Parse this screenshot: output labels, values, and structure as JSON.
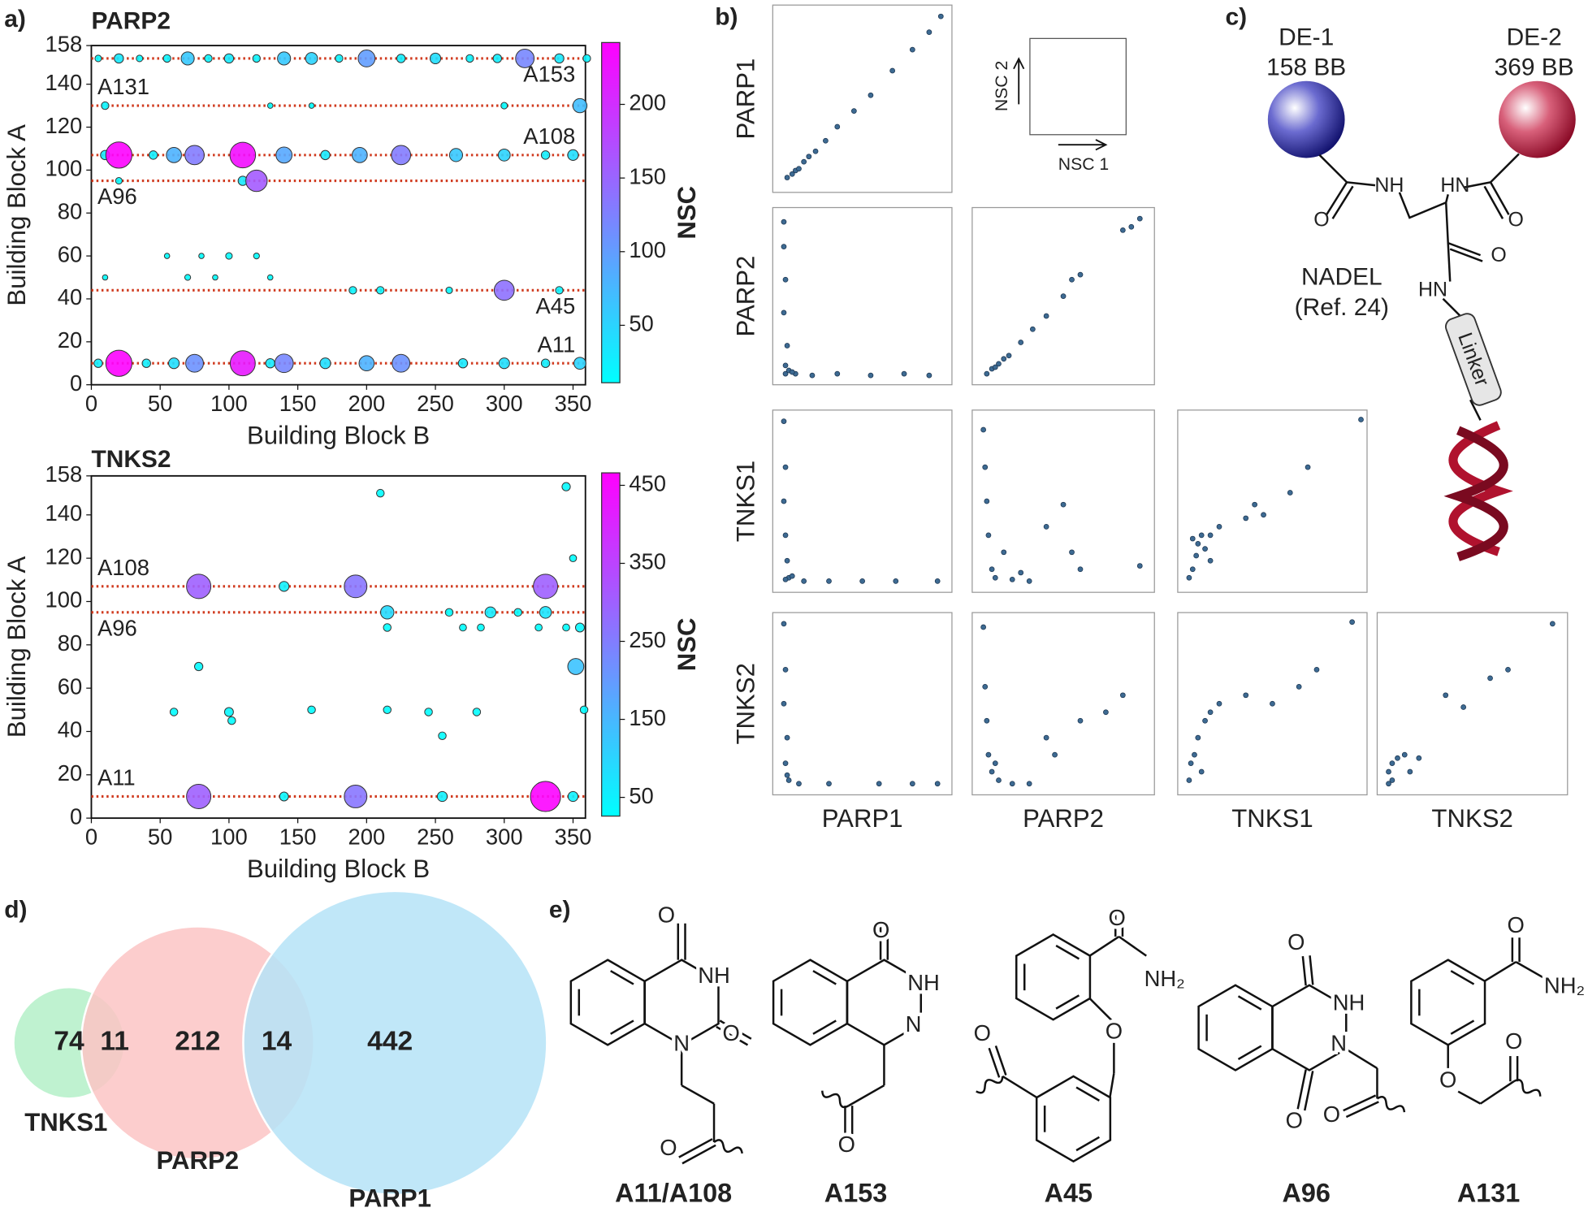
{
  "panel_labels": [
    "a)",
    "b)",
    "c)",
    "d)",
    "e)"
  ],
  "chart_data": [
    {
      "type": "bubble",
      "title": "PARP2",
      "x_label": "Building Block B",
      "y_label": "Building Block A",
      "colorbar_label": "NSC",
      "xlim": [
        0,
        359
      ],
      "ylim": [
        0,
        158
      ],
      "xticks": [
        0,
        50,
        100,
        150,
        200,
        250,
        300,
        350
      ],
      "yticks": [
        0,
        20,
        40,
        60,
        80,
        100,
        120,
        140,
        158
      ],
      "clim": [
        11,
        242
      ],
      "cticks": [
        50,
        100,
        150,
        200
      ],
      "colormap": [
        "#00ffff",
        "#ff00ff"
      ],
      "line_color": "#d03a1e",
      "lines": [
        {
          "label": "A153",
          "y": 152
        },
        {
          "label": "A131",
          "y": 130
        },
        {
          "label": "A108",
          "y": 107
        },
        {
          "label": "A96",
          "y": 95
        },
        {
          "label": "A45",
          "y": 44
        },
        {
          "label": "A11",
          "y": 10
        }
      ],
      "points": [
        [
          5,
          152,
          15
        ],
        [
          20,
          152,
          30
        ],
        [
          35,
          152,
          15
        ],
        [
          55,
          152,
          20
        ],
        [
          70,
          152,
          60
        ],
        [
          85,
          152,
          20
        ],
        [
          100,
          152,
          30
        ],
        [
          120,
          152,
          20
        ],
        [
          140,
          152,
          60
        ],
        [
          160,
          152,
          50
        ],
        [
          180,
          152,
          20
        ],
        [
          200,
          152,
          100
        ],
        [
          225,
          152,
          25
        ],
        [
          250,
          152,
          40
        ],
        [
          275,
          152,
          20
        ],
        [
          295,
          152,
          25
        ],
        [
          315,
          152,
          120
        ],
        [
          340,
          152,
          30
        ],
        [
          360,
          152,
          20
        ],
        [
          10,
          130,
          20
        ],
        [
          130,
          130,
          10
        ],
        [
          160,
          130,
          10
        ],
        [
          300,
          130,
          15
        ],
        [
          355,
          130,
          70
        ],
        [
          10,
          107,
          30
        ],
        [
          20,
          107,
          240
        ],
        [
          45,
          107,
          25
        ],
        [
          60,
          107,
          80
        ],
        [
          75,
          107,
          130
        ],
        [
          110,
          107,
          230
        ],
        [
          140,
          107,
          90
        ],
        [
          170,
          107,
          30
        ],
        [
          195,
          107,
          80
        ],
        [
          225,
          107,
          130
        ],
        [
          265,
          107,
          60
        ],
        [
          300,
          107,
          50
        ],
        [
          330,
          107,
          25
        ],
        [
          350,
          107,
          40
        ],
        [
          20,
          95,
          15
        ],
        [
          110,
          95,
          30
        ],
        [
          120,
          95,
          160
        ],
        [
          55,
          60,
          10
        ],
        [
          80,
          60,
          10
        ],
        [
          100,
          60,
          15
        ],
        [
          120,
          60,
          12
        ],
        [
          10,
          50,
          10
        ],
        [
          70,
          50,
          12
        ],
        [
          90,
          50,
          10
        ],
        [
          130,
          50,
          10
        ],
        [
          190,
          44,
          20
        ],
        [
          210,
          44,
          20
        ],
        [
          260,
          44,
          15
        ],
        [
          300,
          44,
          140
        ],
        [
          340,
          44,
          20
        ],
        [
          5,
          10,
          25
        ],
        [
          20,
          10,
          240
        ],
        [
          40,
          10,
          25
        ],
        [
          60,
          10,
          40
        ],
        [
          75,
          10,
          110
        ],
        [
          110,
          10,
          220
        ],
        [
          130,
          10,
          30
        ],
        [
          140,
          10,
          120
        ],
        [
          170,
          10,
          40
        ],
        [
          200,
          10,
          80
        ],
        [
          225,
          10,
          110
        ],
        [
          270,
          10,
          30
        ],
        [
          300,
          10,
          40
        ],
        [
          330,
          10,
          25
        ],
        [
          355,
          10,
          50
        ]
      ]
    },
    {
      "type": "bubble",
      "title": "TNKS2",
      "x_label": "Building Block B",
      "y_label": "Building Block A",
      "colorbar_label": "NSC",
      "xlim": [
        0,
        359
      ],
      "ylim": [
        0,
        158
      ],
      "xticks": [
        0,
        50,
        100,
        150,
        200,
        250,
        300,
        350
      ],
      "yticks": [
        0,
        20,
        40,
        60,
        80,
        100,
        120,
        140,
        158
      ],
      "clim": [
        26,
        466
      ],
      "cticks": [
        50,
        150,
        250,
        350,
        450
      ],
      "colormap": [
        "#00ffff",
        "#ff00ff"
      ],
      "line_color": "#d03a1e",
      "lines": [
        {
          "label": "A108",
          "y": 107
        },
        {
          "label": "A96",
          "y": 95
        },
        {
          "label": "A11",
          "y": 10
        }
      ],
      "points": [
        [
          78,
          107,
          300
        ],
        [
          140,
          107,
          50
        ],
        [
          192,
          107,
          260
        ],
        [
          330,
          107,
          300
        ],
        [
          78,
          10,
          300
        ],
        [
          140,
          10,
          40
        ],
        [
          192,
          10,
          260
        ],
        [
          255,
          10,
          50
        ],
        [
          330,
          10,
          460
        ],
        [
          350,
          10,
          50
        ],
        [
          215,
          95,
          90
        ],
        [
          260,
          95,
          30
        ],
        [
          290,
          95,
          60
        ],
        [
          310,
          95,
          30
        ],
        [
          330,
          95,
          70
        ],
        [
          215,
          88,
          30
        ],
        [
          270,
          88,
          25
        ],
        [
          283,
          88,
          25
        ],
        [
          325,
          88,
          25
        ],
        [
          345,
          88,
          25
        ],
        [
          355,
          88,
          40
        ],
        [
          78,
          70,
          35
        ],
        [
          352,
          70,
          130
        ],
        [
          210,
          150,
          30
        ],
        [
          345,
          153,
          35
        ],
        [
          350,
          120,
          25
        ],
        [
          60,
          49,
          30
        ],
        [
          100,
          49,
          40
        ],
        [
          102,
          45,
          30
        ],
        [
          160,
          50,
          30
        ],
        [
          215,
          50,
          30
        ],
        [
          245,
          49,
          30
        ],
        [
          280,
          49,
          30
        ],
        [
          255,
          38,
          30
        ],
        [
          358,
          50,
          30
        ]
      ]
    },
    {
      "type": "scatter_matrix",
      "names": [
        "PARP1",
        "PARP2",
        "TNKS1",
        "TNKS2"
      ],
      "xlim": [
        0,
        100
      ],
      "ylim": [
        0,
        100
      ],
      "color": "#3d6a92",
      "legend": {
        "x_label": "NSC 1",
        "y_label": "NSC 2"
      },
      "cells": [
        [
          [
            [
              5,
              5
            ],
            [
              8,
              7
            ],
            [
              10,
              9
            ],
            [
              12,
              10
            ],
            [
              15,
              14
            ],
            [
              18,
              17
            ],
            [
              22,
              20
            ],
            [
              28,
              26
            ],
            [
              35,
              34
            ],
            [
              45,
              43
            ],
            [
              55,
              52
            ],
            [
              68,
              66
            ],
            [
              80,
              78
            ],
            [
              90,
              88
            ],
            [
              97,
              97
            ]
          ]
        ],
        [
          [
            [
              3,
              95
            ],
            [
              3,
              80
            ],
            [
              4,
              60
            ],
            [
              3,
              40
            ],
            [
              5,
              20
            ],
            [
              4,
              8
            ],
            [
              10,
              3
            ],
            [
              20,
              2
            ],
            [
              35,
              3
            ],
            [
              55,
              2
            ],
            [
              75,
              3
            ],
            [
              90,
              2
            ],
            [
              4,
              3
            ],
            [
              6,
              5
            ],
            [
              8,
              4
            ]
          ],
          [
            [
              5,
              3
            ],
            [
              8,
              6
            ],
            [
              12,
              9
            ],
            [
              18,
              14
            ],
            [
              25,
              22
            ],
            [
              32,
              30
            ],
            [
              40,
              38
            ],
            [
              50,
              50
            ],
            [
              55,
              60
            ],
            [
              60,
              63
            ],
            [
              85,
              90
            ],
            [
              90,
              92
            ],
            [
              95,
              97
            ],
            [
              10,
              7
            ],
            [
              15,
              12
            ]
          ]
        ],
        [
          [
            [
              3,
              97
            ],
            [
              4,
              70
            ],
            [
              3,
              50
            ],
            [
              4,
              30
            ],
            [
              5,
              15
            ],
            [
              6,
              5
            ],
            [
              15,
              3
            ],
            [
              30,
              3
            ],
            [
              50,
              3
            ],
            [
              70,
              3
            ],
            [
              95,
              3
            ],
            [
              4,
              4
            ],
            [
              8,
              6
            ]
          ],
          [
            [
              3,
              92
            ],
            [
              4,
              70
            ],
            [
              5,
              50
            ],
            [
              6,
              30
            ],
            [
              8,
              10
            ],
            [
              10,
              5
            ],
            [
              20,
              4
            ],
            [
              30,
              3
            ],
            [
              40,
              35
            ],
            [
              50,
              48
            ],
            [
              55,
              20
            ],
            [
              60,
              10
            ],
            [
              95,
              12
            ],
            [
              15,
              20
            ],
            [
              25,
              8
            ]
          ],
          [
            [
              3,
              5
            ],
            [
              5,
              10
            ],
            [
              7,
              18
            ],
            [
              8,
              25
            ],
            [
              10,
              30
            ],
            [
              12,
              22
            ],
            [
              15,
              15
            ],
            [
              20,
              35
            ],
            [
              35,
              40
            ],
            [
              40,
              48
            ],
            [
              45,
              42
            ],
            [
              60,
              55
            ],
            [
              70,
              70
            ],
            [
              100,
              98
            ],
            [
              15,
              30
            ],
            [
              5,
              28
            ]
          ]
        ],
        [
          [
            [
              3,
              97
            ],
            [
              4,
              70
            ],
            [
              3,
              50
            ],
            [
              5,
              30
            ],
            [
              4,
              15
            ],
            [
              6,
              5
            ],
            [
              12,
              3
            ],
            [
              30,
              3
            ],
            [
              60,
              3
            ],
            [
              80,
              3
            ],
            [
              95,
              3
            ],
            [
              5,
              8
            ]
          ],
          [
            [
              3,
              95
            ],
            [
              4,
              60
            ],
            [
              5,
              40
            ],
            [
              6,
              20
            ],
            [
              8,
              10
            ],
            [
              12,
              5
            ],
            [
              20,
              3
            ],
            [
              30,
              3
            ],
            [
              40,
              30
            ],
            [
              45,
              20
            ],
            [
              60,
              40
            ],
            [
              75,
              45
            ],
            [
              85,
              55
            ],
            [
              10,
              15
            ]
          ],
          [
            [
              3,
              5
            ],
            [
              4,
              15
            ],
            [
              6,
              20
            ],
            [
              8,
              30
            ],
            [
              12,
              40
            ],
            [
              15,
              45
            ],
            [
              20,
              50
            ],
            [
              35,
              55
            ],
            [
              50,
              50
            ],
            [
              65,
              60
            ],
            [
              75,
              70
            ],
            [
              95,
              98
            ],
            [
              10,
              10
            ]
          ],
          [
            [
              3,
              3
            ],
            [
              5,
              5
            ],
            [
              3,
              10
            ],
            [
              5,
              15
            ],
            [
              8,
              18
            ],
            [
              12,
              20
            ],
            [
              15,
              10
            ],
            [
              20,
              18
            ],
            [
              35,
              55
            ],
            [
              45,
              48
            ],
            [
              60,
              65
            ],
            [
              70,
              70
            ],
            [
              95,
              97
            ]
          ]
        ]
      ]
    },
    {
      "type": "venn",
      "sets": [
        {
          "name": "TNKS1",
          "color": "#b4f0c8"
        },
        {
          "name": "PARP2",
          "color": "#fbc4c4"
        },
        {
          "name": "PARP1",
          "color": "#b5e3f7"
        }
      ],
      "values": [
        74,
        11,
        212,
        14,
        442
      ]
    }
  ],
  "diagram": {
    "texts": [
      "DE-1",
      "158 BB",
      "DE-2",
      "369 BB",
      "NH",
      "O",
      "HN",
      "O",
      "O",
      "NADEL",
      "(Ref. 24)",
      "HN",
      "Linker"
    ]
  },
  "structures": [
    {
      "name": "A11/A108",
      "atoms": [
        "O",
        "NH",
        "O",
        "N",
        "O"
      ]
    },
    {
      "name": "A153",
      "atoms": [
        "O",
        "NH",
        "N",
        "O"
      ]
    },
    {
      "name": "A45",
      "atoms": [
        "O",
        "NH₂",
        "O",
        "O"
      ]
    },
    {
      "name": "A96",
      "atoms": [
        "O",
        "NH",
        "N",
        "O",
        "O"
      ]
    },
    {
      "name": "A131",
      "atoms": [
        "O",
        "NH₂",
        "O",
        "O"
      ]
    }
  ]
}
